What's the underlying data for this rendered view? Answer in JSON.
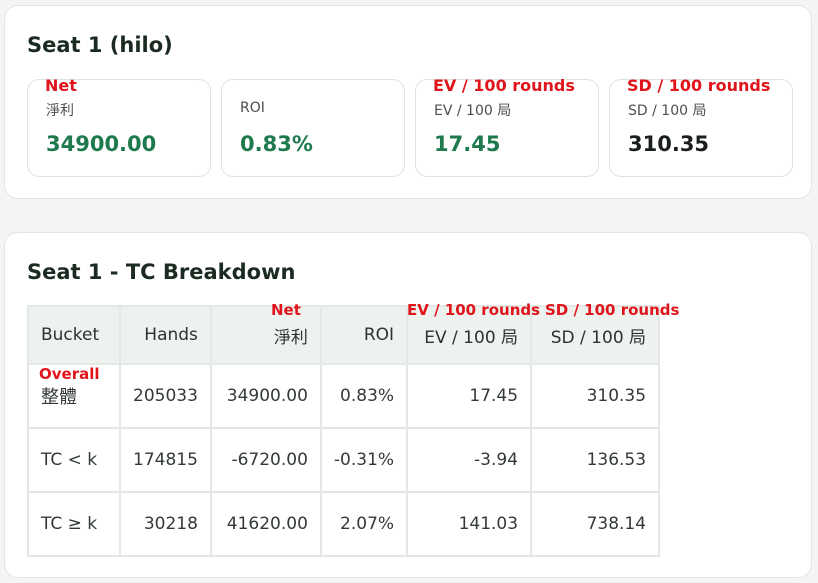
{
  "summary": {
    "title": "Seat 1 (hilo)",
    "stats": [
      {
        "label": "淨利",
        "value": "34900.00",
        "annotation": "Net"
      },
      {
        "label": "ROI",
        "value": "0.83%"
      },
      {
        "label": "EV / 100 局",
        "value": "17.45",
        "annotation": "EV / 100 rounds"
      },
      {
        "label": "SD / 100 局",
        "value": "310.35",
        "annotation": "SD / 100 rounds"
      }
    ]
  },
  "breakdown": {
    "title": "Seat 1 - TC Breakdown",
    "columns": [
      "Bucket",
      "Hands",
      "淨利",
      "ROI",
      "EV / 100 局",
      "SD / 100 局"
    ],
    "column_annotations": {
      "net": "Net",
      "ev": "EV / 100 rounds",
      "sd": "SD / 100 rounds"
    },
    "rows": [
      {
        "bucket": "整體",
        "annotation": "Overall",
        "hands": "205033",
        "net": "34900.00",
        "roi": "0.83%",
        "ev": "17.45",
        "sd": "310.35"
      },
      {
        "bucket": "TC < k",
        "hands": "174815",
        "net": "-6720.00",
        "roi": "-0.31%",
        "ev": "-3.94",
        "sd": "136.53"
      },
      {
        "bucket": "TC ≥ k",
        "hands": "30218",
        "net": "41620.00",
        "roi": "2.07%",
        "ev": "141.03",
        "sd": "738.14"
      }
    ]
  },
  "colors": {
    "positive": "#1e7a4d",
    "annotation": "#e0151c",
    "header_bg": "#eef2ef"
  }
}
